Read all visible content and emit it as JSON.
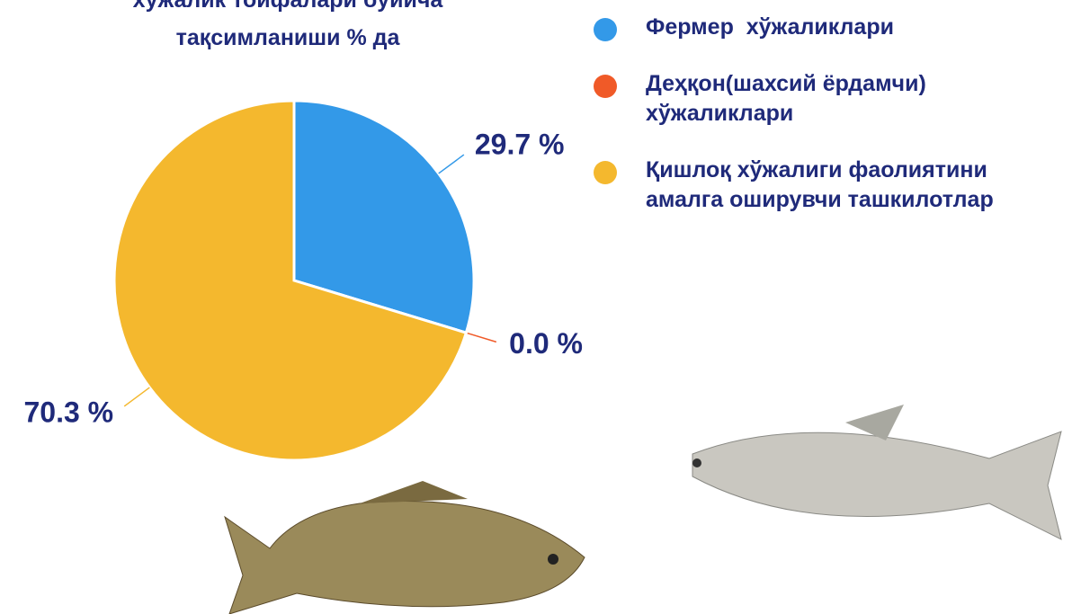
{
  "chart_data": {
    "type": "pie",
    "title": [
      "хўжалик тоифалари бўйича",
      "тақсимланиши % да"
    ],
    "categories": [
      "Фермер  хўжаликлари",
      "Деҳқон(шахсий ёрдамчи) хўжаликлари",
      "Қишлоқ хўжалиги фаолиятини амалга оширувчи ташкилотлар"
    ],
    "values": [
      29.7,
      0.0,
      70.3
    ],
    "value_labels": [
      "29.7 %",
      "0.0 %",
      "70.3 %"
    ],
    "colors": [
      "#3399e8",
      "#f05a28",
      "#f4b82e"
    ]
  }
}
